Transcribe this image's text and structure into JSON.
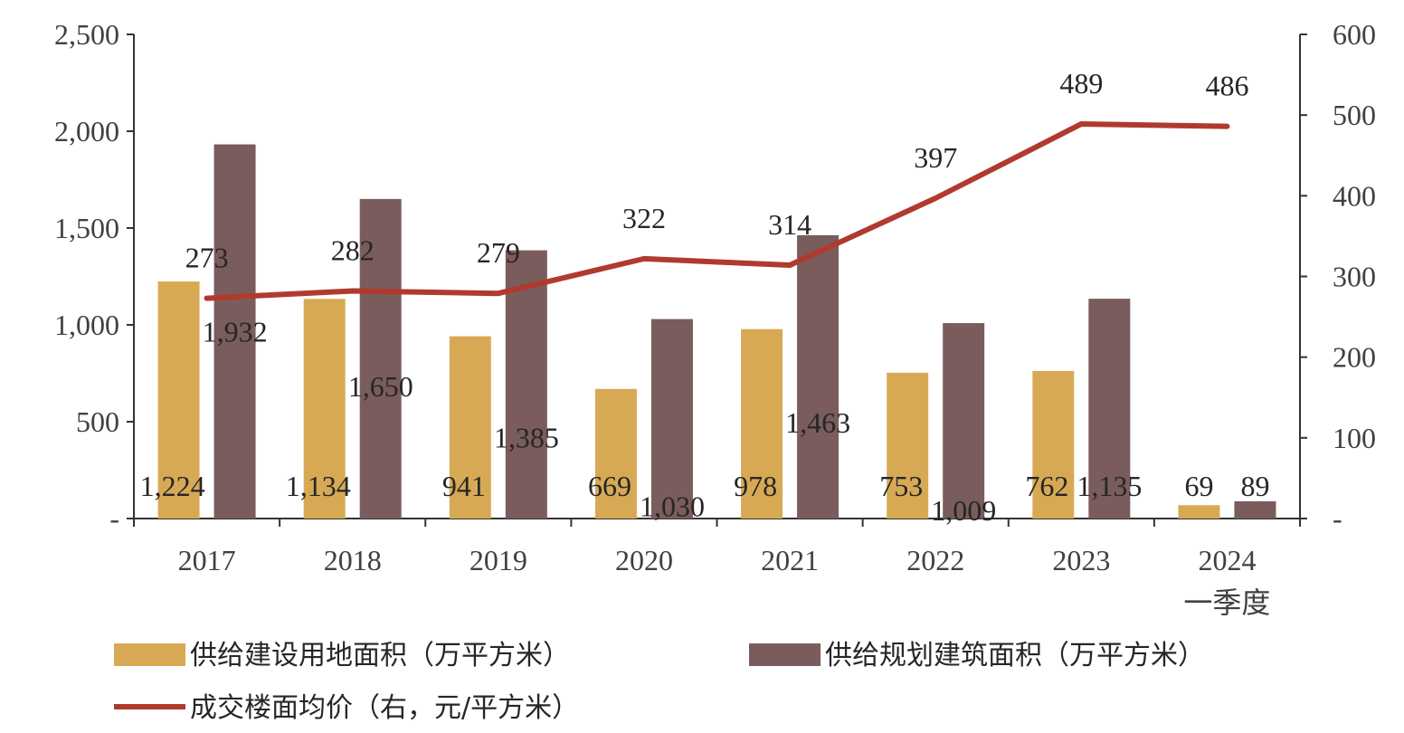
{
  "chart_data": {
    "type": "bar",
    "categories": [
      "2017",
      "2018",
      "2019",
      "2020",
      "2021",
      "2022",
      "2023",
      "2024\n一季度"
    ],
    "series": [
      {
        "name": "供给建设用地面积（万平方米）",
        "type": "bar",
        "axis": "left",
        "color": "#D8A954",
        "values": [
          1224,
          1134,
          941,
          669,
          978,
          753,
          762,
          69
        ],
        "labels": [
          "1,224",
          "1,134",
          "941",
          "669",
          "978",
          "753",
          "762",
          "69"
        ]
      },
      {
        "name": "供给规划建筑面积（万平方米）",
        "type": "bar",
        "axis": "left",
        "color": "#7A5C5C",
        "values": [
          1932,
          1650,
          1385,
          1030,
          1463,
          1009,
          1135,
          89
        ],
        "labels": [
          "1,932",
          "1,650",
          "1,385",
          "1,030",
          "1,463",
          "1,009",
          "1,135",
          "89"
        ]
      },
      {
        "name": "成交楼面均价（右，元/平方米）",
        "type": "line",
        "axis": "right",
        "color": "#B03A2E",
        "values": [
          273,
          282,
          279,
          322,
          314,
          397,
          489,
          486
        ],
        "labels": [
          "273",
          "282",
          "279",
          "322",
          "314",
          "397",
          "489",
          "486"
        ]
      }
    ],
    "y_left": {
      "min": 0,
      "max": 2500,
      "ticks": [
        0,
        500,
        1000,
        1500,
        2000,
        2500
      ],
      "tick_labels": [
        "-",
        "500",
        "1,000",
        "1,500",
        "2,000",
        "2,500"
      ]
    },
    "y_right": {
      "min": 0,
      "max": 600,
      "ticks": [
        0,
        100,
        200,
        300,
        400,
        500,
        600
      ],
      "tick_labels": [
        "-",
        "100",
        "200",
        "300",
        "400",
        "500",
        "600"
      ]
    },
    "grid": false,
    "legend_position": "bottom"
  }
}
